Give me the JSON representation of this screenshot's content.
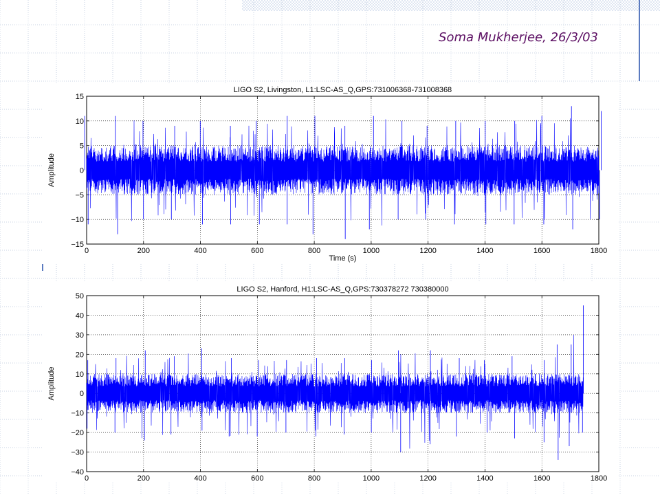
{
  "slide": {
    "author_line": "Soma Mukherjee, 26/3/03",
    "colors": {
      "author": "#5c0f63",
      "grid_lines": "#c9d3e3",
      "accent_bar": "#5b7bc0",
      "checker_band": "#dfe6f2"
    }
  },
  "chart_data": [
    {
      "type": "line",
      "title": "LIGO S2, Livingston, L1:LSC-AS_Q,GPS:731006368-731008368",
      "xlabel": "Time (s)",
      "ylabel": "Amplitude",
      "xlim": [
        0,
        1800
      ],
      "ylim": [
        -15,
        15
      ],
      "xticks": [
        "0",
        "200",
        "400",
        "600",
        "800",
        "1000",
        "1200",
        "1400",
        "1600",
        "1800"
      ],
      "yticks": [
        "15",
        "10",
        "5",
        "0",
        "−5",
        "−10",
        "−15"
      ],
      "grid": true,
      "series_color": "#0000ff",
      "series": [
        {
          "x_range": [
            0,
            1800
          ],
          "core_amplitude": 5,
          "envelope": {
            "x": [
              0,
              100,
              200,
              300,
              400,
              500,
              600,
              700,
              800,
              900,
              1000,
              1100,
              1200,
              1300,
              1400,
              1500,
              1600,
              1700,
              1800
            ],
            "max": [
              11,
              11,
              10,
              9,
              10,
              9,
              10,
              11,
              11,
              9,
              11,
              10,
              9,
              10,
              10,
              10,
              11,
              13,
              12
            ],
            "min": [
              -11,
              -13,
              -10,
              -10,
              -11,
              -11,
              -11,
              -11,
              -13,
              -14,
              -12,
              -10,
              -10,
              -11,
              -11,
              -11,
              -11,
              -12,
              -10
            ]
          }
        }
      ]
    },
    {
      "type": "line",
      "title": "LIGO S2, Hanford, H1:LSC-AS_Q,GPS:730378272 730380000",
      "xlabel": "Time (s)",
      "ylabel": "Amplitude",
      "xlim": [
        0,
        1800
      ],
      "ylim": [
        -40,
        50
      ],
      "xticks": [
        "0",
        "200",
        "400",
        "600",
        "800",
        "1000",
        "1200",
        "1400",
        "1600",
        "1800"
      ],
      "yticks": [
        "50",
        "40",
        "30",
        "20",
        "10",
        "0",
        "−10",
        "−20",
        "−30",
        "−40"
      ],
      "grid": true,
      "series_color": "#0000ff",
      "series": [
        {
          "x_range": [
            0,
            1745
          ],
          "core_amplitude": 10,
          "envelope": {
            "x": [
              0,
              100,
              200,
              300,
              400,
              500,
              600,
              700,
              800,
              900,
              1000,
              1100,
              1200,
              1300,
              1400,
              1500,
              1600,
              1650,
              1700,
              1745
            ],
            "max": [
              17,
              18,
              22,
              19,
              23,
              18,
              17,
              17,
              18,
              18,
              17,
              22,
              22,
              18,
              17,
              19,
              17,
              25,
              25,
              45
            ],
            "min": [
              -18,
              -20,
              -24,
              -21,
              -19,
              -22,
              -22,
              -20,
              -22,
              -21,
              -20,
              -30,
              -26,
              -22,
              -20,
              -23,
              -25,
              -34,
              -27,
              -20
            ]
          }
        }
      ]
    }
  ]
}
